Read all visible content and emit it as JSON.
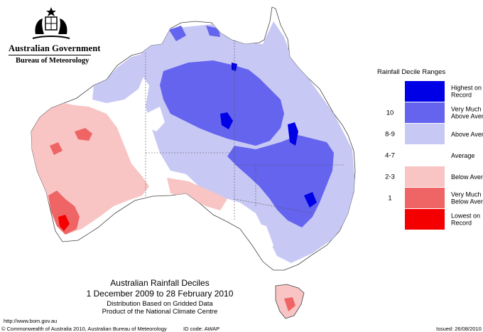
{
  "header": {
    "government": "Australian Government",
    "bureau": "Bureau of Meteorology"
  },
  "legend": {
    "title": "Rainfall Decile Ranges",
    "items": [
      {
        "range": "",
        "label_lines": [
          "Highest on",
          "Record"
        ],
        "color": "#0000e6"
      },
      {
        "range": "10",
        "label_lines": [
          "Very Much",
          "Above Average"
        ],
        "color": "#6464ef"
      },
      {
        "range": "8-9",
        "label_lines": [
          "Above Average"
        ],
        "color": "#c8c8f5"
      },
      {
        "range": "4-7",
        "label_lines": [
          "Average"
        ],
        "color": "#ffffff"
      },
      {
        "range": "2-3",
        "label_lines": [
          "Below Average"
        ],
        "color": "#f8c4c4"
      },
      {
        "range": "1",
        "label_lines": [
          "Very Much",
          "Below Average"
        ],
        "color": "#ef6565"
      },
      {
        "range": "",
        "label_lines": [
          "Lowest on",
          "Record"
        ],
        "color": "#f40000"
      }
    ]
  },
  "map": {
    "title": "Australian Rainfall Deciles",
    "period": "1 December 2009 to 28 February 2010",
    "note1": "Distribution Based on Gridded Data",
    "note2": "Product of the National Climate Centre"
  },
  "footer": {
    "url": "http://www.bom.gov.au",
    "copyright": "© Commonwealth of Australia 2010, Australian Bureau of Meteorology",
    "id_code": "ID code: AWAP",
    "issued": "Issued: 26/08/2010"
  }
}
